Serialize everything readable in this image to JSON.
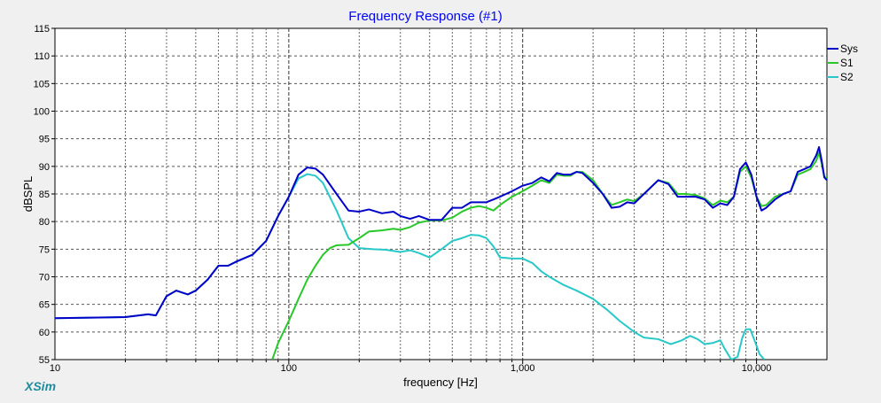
{
  "chart_data": {
    "type": "line",
    "title": "Frequency Response (#1)",
    "xlabel": "frequency [Hz]",
    "ylabel": "dBSPL",
    "xscale": "log",
    "xlim": [
      10,
      20000
    ],
    "ylim": [
      55,
      115
    ],
    "yticks": [
      55,
      60,
      65,
      70,
      75,
      80,
      85,
      90,
      95,
      100,
      105,
      110,
      115
    ],
    "xtick_labels": [
      {
        "value": 10,
        "label": "10"
      },
      {
        "value": 100,
        "label": "100"
      },
      {
        "value": 1000,
        "label": "1,000"
      },
      {
        "value": 10000,
        "label": "10,000"
      }
    ],
    "grid": true,
    "legend_position": "top-right",
    "series": [
      {
        "name": "Sys",
        "color": "#0000c8",
        "points": [
          [
            10,
            62.5
          ],
          [
            20,
            62.7
          ],
          [
            25,
            63.2
          ],
          [
            27,
            63
          ],
          [
            30,
            66.5
          ],
          [
            33,
            67.5
          ],
          [
            37,
            66.8
          ],
          [
            40,
            67.5
          ],
          [
            45,
            69.5
          ],
          [
            50,
            72
          ],
          [
            55,
            72
          ],
          [
            60,
            72.8
          ],
          [
            70,
            74
          ],
          [
            80,
            76.5
          ],
          [
            90,
            81
          ],
          [
            100,
            84.5
          ],
          [
            110,
            88.5
          ],
          [
            120,
            89.8
          ],
          [
            130,
            89.6
          ],
          [
            140,
            88.5
          ],
          [
            160,
            85
          ],
          [
            180,
            82
          ],
          [
            200,
            81.8
          ],
          [
            220,
            82.2
          ],
          [
            250,
            81.5
          ],
          [
            280,
            81.8
          ],
          [
            300,
            81
          ],
          [
            330,
            80.5
          ],
          [
            360,
            81
          ],
          [
            400,
            80.3
          ],
          [
            450,
            80.3
          ],
          [
            500,
            82.5
          ],
          [
            550,
            82.5
          ],
          [
            600,
            83.5
          ],
          [
            650,
            83.5
          ],
          [
            700,
            83.5
          ],
          [
            750,
            84
          ],
          [
            800,
            84.5
          ],
          [
            900,
            85.5
          ],
          [
            1000,
            86.5
          ],
          [
            1100,
            87
          ],
          [
            1200,
            88
          ],
          [
            1300,
            87.3
          ],
          [
            1400,
            88.8
          ],
          [
            1500,
            88.5
          ],
          [
            1600,
            88.5
          ],
          [
            1700,
            89
          ],
          [
            1800,
            88.8
          ],
          [
            2000,
            87
          ],
          [
            2200,
            85
          ],
          [
            2400,
            82.5
          ],
          [
            2600,
            82.7
          ],
          [
            2800,
            83.5
          ],
          [
            3000,
            83.3
          ],
          [
            3300,
            85
          ],
          [
            3800,
            87.5
          ],
          [
            4200,
            86.8
          ],
          [
            4600,
            84.5
          ],
          [
            5000,
            84.5
          ],
          [
            5500,
            84.5
          ],
          [
            6000,
            84
          ],
          [
            6500,
            82.5
          ],
          [
            7000,
            83.3
          ],
          [
            7500,
            83
          ],
          [
            8000,
            84.5
          ],
          [
            8500,
            89.5
          ],
          [
            9000,
            90.7
          ],
          [
            9500,
            88.5
          ],
          [
            10000,
            84.5
          ],
          [
            10500,
            82
          ],
          [
            11000,
            82.5
          ],
          [
            12000,
            84
          ],
          [
            13000,
            85
          ],
          [
            14000,
            85.5
          ],
          [
            15000,
            89
          ],
          [
            16000,
            89.5
          ],
          [
            17000,
            90
          ],
          [
            18000,
            92
          ],
          [
            18500,
            93.5
          ],
          [
            19000,
            91
          ],
          [
            19500,
            88
          ],
          [
            20000,
            87.5
          ]
        ]
      },
      {
        "name": "S1",
        "color": "#28c828",
        "points": [
          [
            85,
            55
          ],
          [
            90,
            58
          ],
          [
            100,
            62
          ],
          [
            110,
            66
          ],
          [
            120,
            69.5
          ],
          [
            130,
            72
          ],
          [
            140,
            74
          ],
          [
            150,
            75.2
          ],
          [
            160,
            75.7
          ],
          [
            180,
            75.8
          ],
          [
            200,
            77
          ],
          [
            220,
            78.2
          ],
          [
            250,
            78.4
          ],
          [
            280,
            78.7
          ],
          [
            300,
            78.5
          ],
          [
            330,
            79
          ],
          [
            360,
            79.8
          ],
          [
            400,
            80.2
          ],
          [
            450,
            80.2
          ],
          [
            500,
            80.7
          ],
          [
            550,
            81.8
          ],
          [
            600,
            82.5
          ],
          [
            650,
            82.8
          ],
          [
            700,
            82.5
          ],
          [
            750,
            82
          ],
          [
            800,
            83
          ],
          [
            900,
            84.5
          ],
          [
            1000,
            85.5
          ],
          [
            1100,
            86.5
          ],
          [
            1200,
            87.5
          ],
          [
            1300,
            87
          ],
          [
            1400,
            88.5
          ],
          [
            1500,
            88.3
          ],
          [
            1600,
            88.3
          ],
          [
            1700,
            89
          ],
          [
            1800,
            89
          ],
          [
            2000,
            87.5
          ],
          [
            2200,
            85
          ],
          [
            2400,
            83
          ],
          [
            2600,
            83.5
          ],
          [
            2800,
            84
          ],
          [
            3000,
            83.7
          ],
          [
            3300,
            85
          ],
          [
            3800,
            87.5
          ],
          [
            4200,
            87
          ],
          [
            4600,
            85
          ],
          [
            5000,
            85
          ],
          [
            5500,
            84.8
          ],
          [
            6000,
            84.2
          ],
          [
            6500,
            83
          ],
          [
            7000,
            83.8
          ],
          [
            7500,
            83.5
          ],
          [
            8000,
            84.5
          ],
          [
            8500,
            89
          ],
          [
            9000,
            90
          ],
          [
            9500,
            88
          ],
          [
            10000,
            84.5
          ],
          [
            10500,
            82.8
          ],
          [
            11000,
            83
          ],
          [
            12000,
            84.5
          ],
          [
            13000,
            85
          ],
          [
            14000,
            85.5
          ],
          [
            15000,
            88.5
          ],
          [
            16000,
            89
          ],
          [
            17000,
            89.5
          ],
          [
            18000,
            91
          ],
          [
            18500,
            92.5
          ],
          [
            19000,
            90.5
          ],
          [
            19500,
            88
          ],
          [
            20000,
            88
          ]
        ]
      },
      {
        "name": "S2",
        "color": "#28c8c8",
        "points": [
          [
            10,
            62.5
          ],
          [
            20,
            62.7
          ],
          [
            25,
            63.2
          ],
          [
            27,
            63
          ],
          [
            30,
            66.5
          ],
          [
            33,
            67.5
          ],
          [
            37,
            66.8
          ],
          [
            40,
            67.5
          ],
          [
            45,
            69.5
          ],
          [
            50,
            72
          ],
          [
            55,
            72
          ],
          [
            60,
            72.8
          ],
          [
            70,
            74
          ],
          [
            80,
            76.5
          ],
          [
            90,
            81
          ],
          [
            100,
            84.5
          ],
          [
            110,
            87.8
          ],
          [
            120,
            88.6
          ],
          [
            130,
            88.3
          ],
          [
            140,
            87
          ],
          [
            160,
            82
          ],
          [
            180,
            77
          ],
          [
            200,
            75.2
          ],
          [
            230,
            75
          ],
          [
            260,
            74.9
          ],
          [
            300,
            74.5
          ],
          [
            330,
            74.8
          ],
          [
            360,
            74.3
          ],
          [
            400,
            73.5
          ],
          [
            450,
            75
          ],
          [
            500,
            76.5
          ],
          [
            550,
            77
          ],
          [
            600,
            77.6
          ],
          [
            650,
            77.5
          ],
          [
            700,
            77
          ],
          [
            750,
            75.5
          ],
          [
            800,
            73.5
          ],
          [
            900,
            73.3
          ],
          [
            1000,
            73.3
          ],
          [
            1100,
            72.5
          ],
          [
            1200,
            71
          ],
          [
            1300,
            70
          ],
          [
            1500,
            68.5
          ],
          [
            1700,
            67.5
          ],
          [
            2000,
            66
          ],
          [
            2300,
            64
          ],
          [
            2600,
            62
          ],
          [
            3000,
            60
          ],
          [
            3300,
            59
          ],
          [
            3800,
            58.7
          ],
          [
            4300,
            57.8
          ],
          [
            4800,
            58.5
          ],
          [
            5200,
            59.3
          ],
          [
            5600,
            58.7
          ],
          [
            6000,
            57.8
          ],
          [
            6500,
            58
          ],
          [
            7000,
            58.5
          ],
          [
            7300,
            57
          ],
          [
            7800,
            55
          ],
          [
            8300,
            55.5
          ],
          [
            8700,
            59
          ],
          [
            9000,
            60.5
          ],
          [
            9400,
            60.5
          ],
          [
            9800,
            58.5
          ],
          [
            10300,
            56
          ],
          [
            10800,
            55
          ]
        ]
      }
    ]
  },
  "brand": "XSim"
}
